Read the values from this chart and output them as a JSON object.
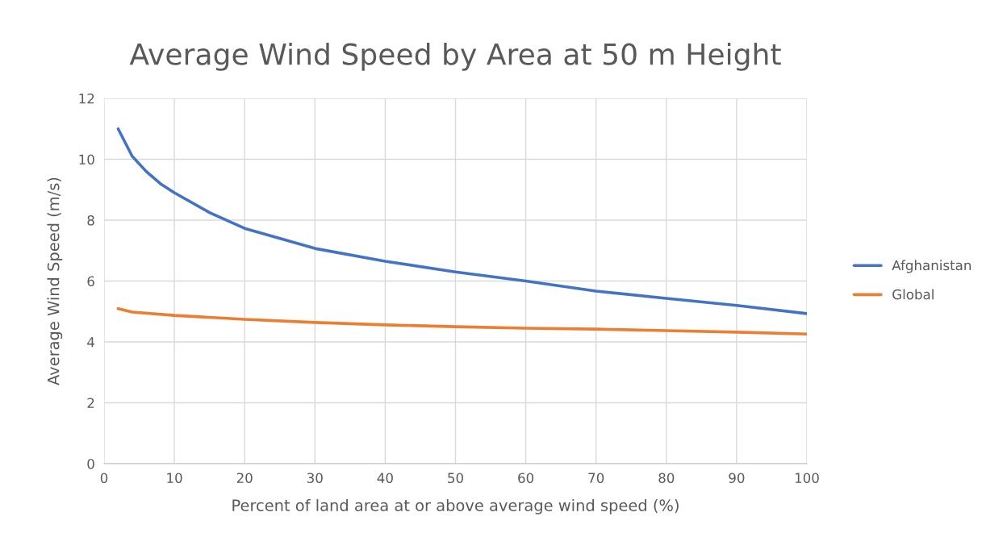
{
  "chart_data": {
    "type": "line",
    "title": "Average Wind Speed by Area at 50 m Height",
    "xlabel": "Percent of land area at or above average wind speed (%)",
    "ylabel": "Average Wind Speed (m/s)",
    "series": [
      {
        "name": "Afghanistan",
        "color": "#4472c4",
        "x": [
          2,
          4,
          6,
          8,
          10,
          15,
          20,
          30,
          40,
          50,
          60,
          70,
          80,
          90,
          100
        ],
        "values": [
          11.0,
          10.1,
          9.6,
          9.2,
          8.9,
          8.25,
          7.73,
          7.07,
          6.65,
          6.3,
          6.0,
          5.67,
          5.43,
          5.2,
          4.93
        ]
      },
      {
        "name": "Global",
        "color": "#ed7d31",
        "x": [
          2,
          4,
          10,
          20,
          30,
          40,
          50,
          60,
          70,
          80,
          90,
          100
        ],
        "values": [
          5.09,
          4.98,
          4.87,
          4.74,
          4.64,
          4.56,
          4.5,
          4.45,
          4.42,
          4.37,
          4.32,
          4.26
        ]
      }
    ],
    "xlim": [
      0,
      100
    ],
    "xticks": [
      0,
      10,
      20,
      30,
      40,
      50,
      60,
      70,
      80,
      90,
      100
    ],
    "ylim": [
      0,
      12
    ],
    "yticks": [
      0,
      2,
      4,
      6,
      8,
      10,
      12
    ],
    "grid": true,
    "legend": "right",
    "marker": "none",
    "line_style": "solid"
  }
}
